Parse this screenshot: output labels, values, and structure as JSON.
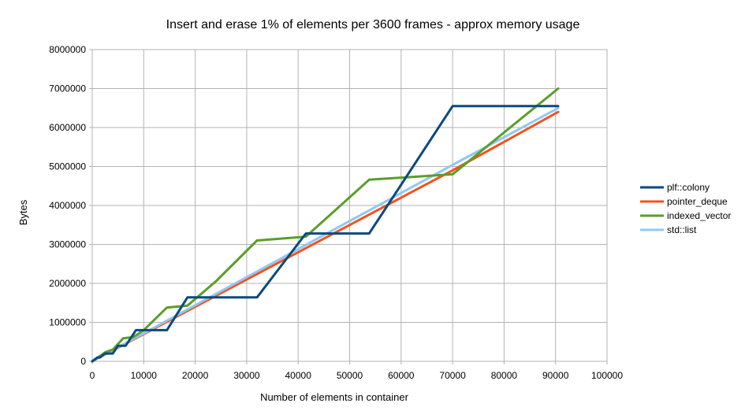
{
  "chart_data": {
    "type": "line",
    "title": "Insert and erase 1% of elements per 3600 frames - approx memory usage",
    "xlabel": "Number of elements in container",
    "ylabel": "Bytes",
    "xlim": [
      0,
      100000
    ],
    "ylim": [
      0,
      8000000
    ],
    "x_ticks": [
      "0",
      "10000",
      "20000",
      "30000",
      "40000",
      "50000",
      "60000",
      "70000",
      "80000",
      "90000",
      "100000"
    ],
    "y_ticks": [
      "0",
      "1000000",
      "2000000",
      "3000000",
      "4000000",
      "5000000",
      "6000000",
      "7000000",
      "8000000"
    ],
    "grid": true,
    "legend_position": "right",
    "series": [
      {
        "name": "pointer_deque",
        "color": "#f4511e",
        "x": [
          0,
          10000,
          20000,
          30000,
          40000,
          50000,
          60000,
          70000,
          90500
        ],
        "y": [
          0,
          700000,
          1400000,
          2100000,
          2800000,
          3500000,
          4200000,
          4900000,
          6400000
        ]
      },
      {
        "name": "std::list",
        "color": "#8fc8f4",
        "x": [
          0,
          10000,
          20000,
          30000,
          40000,
          50000,
          60000,
          70000,
          90500
        ],
        "y": [
          0,
          720000,
          1440000,
          2160000,
          2880000,
          3600000,
          4320000,
          5040000,
          6500000
        ]
      },
      {
        "name": "indexed_vector",
        "color": "#5a9e2a",
        "x": [
          0,
          1200,
          2500,
          4000,
          6000,
          8000,
          10000,
          14500,
          18500,
          24000,
          32000,
          41500,
          53800,
          70000,
          90500
        ],
        "y": [
          0,
          110000,
          230000,
          300000,
          590000,
          620000,
          800000,
          1380000,
          1430000,
          2050000,
          3100000,
          3200000,
          4660000,
          4800000,
          7000000
        ]
      },
      {
        "name": "plf::colony",
        "color": "#0a4a7e",
        "x": [
          0,
          1000,
          1500,
          2500,
          3500,
          4000,
          5000,
          6500,
          8500,
          10500,
          14500,
          18500,
          24000,
          32000,
          41500,
          53800,
          70000,
          90500
        ],
        "y": [
          0,
          100000,
          100000,
          200000,
          200000,
          200000,
          400000,
          400000,
          800000,
          800000,
          800000,
          1640000,
          1640000,
          1640000,
          3280000,
          3280000,
          6550000,
          6550000
        ]
      }
    ],
    "legend": [
      "plf::colony",
      "pointer_deque",
      "indexed_vector",
      "std::list"
    ]
  }
}
